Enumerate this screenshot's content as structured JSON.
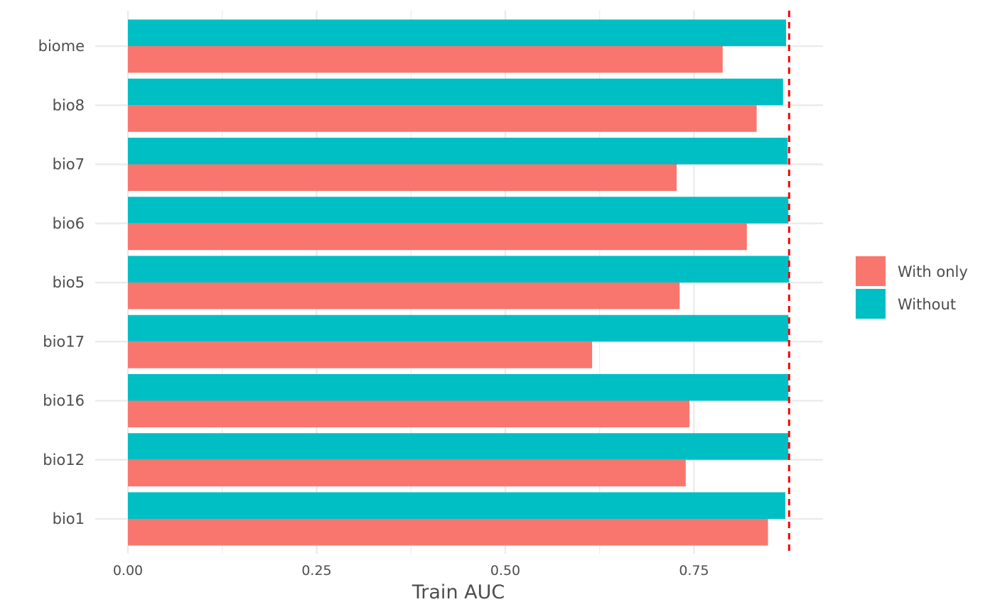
{
  "chart_data": {
    "type": "bar",
    "orientation": "horizontal",
    "categories": [
      "bio1",
      "bio12",
      "bio16",
      "bio17",
      "bio5",
      "bio6",
      "bio7",
      "bio8",
      "biome"
    ],
    "series": [
      {
        "name": "With only",
        "color": "#f8766d",
        "values": [
          0.848,
          0.739,
          0.744,
          0.615,
          0.731,
          0.82,
          0.727,
          0.833,
          0.788
        ]
      },
      {
        "name": "Without",
        "color": "#00bfc4",
        "values": [
          0.871,
          0.875,
          0.875,
          0.875,
          0.876,
          0.875,
          0.874,
          0.868,
          0.872
        ]
      }
    ],
    "reference_line": {
      "value": 0.876,
      "color": "#ff0000",
      "style": "dashed"
    },
    "xlabel": "Train AUC",
    "ylabel": "",
    "title": "",
    "xlim": [
      0,
      0.92
    ],
    "xticks": [
      "0.00",
      "0.25",
      "0.50",
      "0.75"
    ],
    "xtick_values": [
      0,
      0.25,
      0.5,
      0.75
    ],
    "grid": true,
    "legend_position": "right"
  }
}
